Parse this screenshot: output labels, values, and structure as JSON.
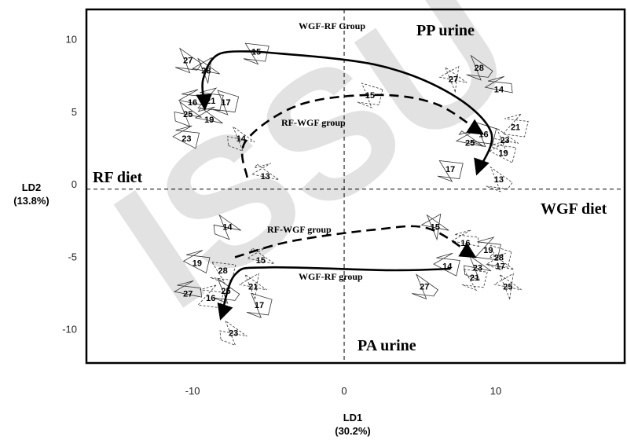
{
  "chart_data": {
    "type": "scatter",
    "xlim": [
      -17,
      18.5
    ],
    "ylim": [
      -12.3,
      12.1
    ],
    "x_ticks": [
      -10,
      0,
      10
    ],
    "y_ticks": [
      -10,
      -5,
      0,
      5,
      10
    ],
    "xlabel": "LD1",
    "xlabel_pct": "(30.2%)",
    "ylabel": "LD2",
    "ylabel_pct": "(13.8%)",
    "grid": false,
    "reference_lines": {
      "x": 0,
      "y": -0.3
    },
    "annotations": {
      "pp_urine": "PP urine",
      "pa_urine": "PA urine",
      "rf_diet": "RF diet",
      "wgf_diet": "WGF diet",
      "wgf_rf_top": "WGF-RF Group",
      "rf_wgf_top": "RF-WGF group",
      "rf_wgf_bottom": "RF-WGF  group",
      "wgf_rf_bottom": "WGF-RF group"
    },
    "watermark": "ISSU",
    "groups": [
      {
        "panel": "PP urine",
        "diet": "RF",
        "sequence": "WGF-RF",
        "style": "solid",
        "points": [
          {
            "id": "15",
            "x": -5.8,
            "y": 9.2
          },
          {
            "id": "27",
            "x": -10.3,
            "y": 8.6
          },
          {
            "id": "28",
            "x": -9.1,
            "y": 7.9
          },
          {
            "id": "16",
            "x": -10.0,
            "y": 5.7
          },
          {
            "id": "21",
            "x": -8.8,
            "y": 5.8
          },
          {
            "id": "17",
            "x": -7.8,
            "y": 5.7
          },
          {
            "id": "25",
            "x": -10.3,
            "y": 4.9
          },
          {
            "id": "19",
            "x": -8.9,
            "y": 4.5
          },
          {
            "id": "23",
            "x": -10.4,
            "y": 3.2
          }
        ]
      },
      {
        "panel": "PP urine",
        "diet": "RF",
        "sequence": "RF-WGF",
        "style": "dashed",
        "points": [
          {
            "id": "15",
            "x": 1.7,
            "y": 6.2
          },
          {
            "id": "14",
            "x": -6.8,
            "y": 3.2
          },
          {
            "id": "13",
            "x": -5.2,
            "y": 0.6
          }
        ]
      },
      {
        "panel": "PP urine",
        "diet": "WGF",
        "sequence": "both",
        "style": "mixed",
        "points": [
          {
            "id": "28",
            "x": 8.9,
            "y": 8.1
          },
          {
            "id": "27",
            "x": 7.2,
            "y": 7.3
          },
          {
            "id": "14",
            "x": 10.2,
            "y": 6.6
          },
          {
            "id": "21",
            "x": 11.3,
            "y": 4.0
          },
          {
            "id": "16",
            "x": 9.2,
            "y": 3.5
          },
          {
            "id": "23",
            "x": 10.6,
            "y": 3.1
          },
          {
            "id": "25",
            "x": 8.3,
            "y": 2.9
          },
          {
            "id": "19",
            "x": 10.5,
            "y": 2.2
          },
          {
            "id": "17",
            "x": 7.0,
            "y": 1.1
          },
          {
            "id": "13",
            "x": 10.2,
            "y": 0.4
          }
        ]
      },
      {
        "panel": "PA urine",
        "diet": "RF",
        "sequence": "both",
        "style": "mixed",
        "points": [
          {
            "id": "14",
            "x": -7.7,
            "y": -2.9
          },
          {
            "id": "15",
            "x": -5.5,
            "y": -5.2
          },
          {
            "id": "19",
            "x": -9.7,
            "y": -5.4
          },
          {
            "id": "28",
            "x": -8.0,
            "y": -5.9
          },
          {
            "id": "25",
            "x": -7.8,
            "y": -7.3
          },
          {
            "id": "21",
            "x": -6.0,
            "y": -7.0
          },
          {
            "id": "27",
            "x": -10.3,
            "y": -7.5
          },
          {
            "id": "16",
            "x": -8.8,
            "y": -7.8
          },
          {
            "id": "17",
            "x": -5.6,
            "y": -8.3
          },
          {
            "id": "23",
            "x": -7.3,
            "y": -10.2
          }
        ]
      },
      {
        "panel": "PA urine",
        "diet": "WGF",
        "sequence": "both",
        "style": "mixed",
        "points": [
          {
            "id": "15",
            "x": 6.0,
            "y": -2.9
          },
          {
            "id": "16",
            "x": 8.0,
            "y": -4.0
          },
          {
            "id": "19",
            "x": 9.5,
            "y": -4.5
          },
          {
            "id": "28",
            "x": 10.2,
            "y": -5.0
          },
          {
            "id": "23",
            "x": 8.8,
            "y": -5.7
          },
          {
            "id": "17",
            "x": 10.3,
            "y": -5.6
          },
          {
            "id": "14",
            "x": 6.8,
            "y": -5.6
          },
          {
            "id": "21",
            "x": 8.6,
            "y": -6.4
          },
          {
            "id": "27",
            "x": 5.3,
            "y": -7.0
          },
          {
            "id": "25",
            "x": 10.8,
            "y": -7.0
          }
        ]
      }
    ],
    "trajectories": [
      {
        "name": "WGF-RF Group",
        "style": "solid",
        "points": [
          [
            -5.8,
            9.2
          ],
          [
            2,
            8.3
          ],
          [
            7,
            6.3
          ],
          [
            9.7,
            3.6
          ],
          [
            8.8,
            0.9
          ]
        ]
      },
      {
        "name": "RF-WGF group",
        "style": "dashed",
        "points": [
          [
            -6.4,
            0.5
          ],
          [
            -6.5,
            3.0
          ],
          [
            -3,
            5.5
          ],
          [
            2,
            6.2
          ],
          [
            6,
            5.6
          ],
          [
            9.0,
            3.6
          ]
        ]
      },
      {
        "name": "RF-WGF  group",
        "style": "dashed",
        "points": [
          [
            -7.2,
            -5.0
          ],
          [
            -3.5,
            -3.9
          ],
          [
            2,
            -3.1
          ],
          [
            5.5,
            -3.0
          ],
          [
            8.5,
            -4.9
          ]
        ]
      },
      {
        "name": "WGF-RF group",
        "style": "solid",
        "points": [
          [
            7.0,
            -5.8
          ],
          [
            3,
            -5.9
          ],
          [
            -5,
            -5.7
          ],
          [
            -7.2,
            -6.2
          ],
          [
            -8.1,
            -9.1
          ]
        ]
      },
      {
        "name": "RF loop top",
        "style": "solid",
        "points": [
          [
            -5.8,
            9.2
          ],
          [
            -8.3,
            9.0
          ],
          [
            -9.3,
            7.3
          ],
          [
            -9.2,
            5.4
          ]
        ]
      }
    ]
  }
}
